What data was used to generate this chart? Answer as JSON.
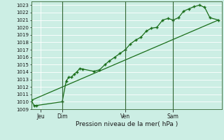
{
  "xlabel": "Pression niveau de la mer( hPa )",
  "bg_color": "#cceee4",
  "grid_color": "#ffffff",
  "line_color": "#1a6e1a",
  "ylim": [
    1009,
    1023.5
  ],
  "yticks": [
    1009,
    1010,
    1011,
    1012,
    1013,
    1014,
    1015,
    1016,
    1017,
    1018,
    1019,
    1020,
    1021,
    1022,
    1023
  ],
  "xlim": [
    0,
    290
  ],
  "day_positions": [
    14,
    47,
    143,
    216
  ],
  "day_labels": [
    "Jeu",
    "Dim",
    "Ven",
    "Sam"
  ],
  "vline_positions": [
    47,
    143,
    216
  ],
  "series1_x": [
    0,
    4,
    8,
    47,
    53,
    57,
    61,
    65,
    69,
    74,
    78,
    95,
    104,
    112,
    119,
    127,
    135,
    143,
    151,
    159,
    167,
    175,
    183,
    191,
    200,
    208,
    216,
    224,
    232,
    240,
    248,
    256,
    264,
    272,
    285
  ],
  "series1_y": [
    1010.2,
    1009.5,
    1009.5,
    1010.0,
    1012.8,
    1013.3,
    1013.3,
    1013.7,
    1014.0,
    1014.5,
    1014.4,
    1014.1,
    1014.3,
    1015.0,
    1015.5,
    1016.0,
    1016.5,
    1017.0,
    1017.8,
    1018.3,
    1018.7,
    1019.5,
    1019.9,
    1020.0,
    1021.0,
    1021.2,
    1021.0,
    1021.3,
    1022.2,
    1022.5,
    1022.8,
    1023.0,
    1022.7,
    1021.3,
    1021.0
  ],
  "series2_x": [
    0,
    285
  ],
  "series2_y": [
    1010.2,
    1021.0
  ]
}
